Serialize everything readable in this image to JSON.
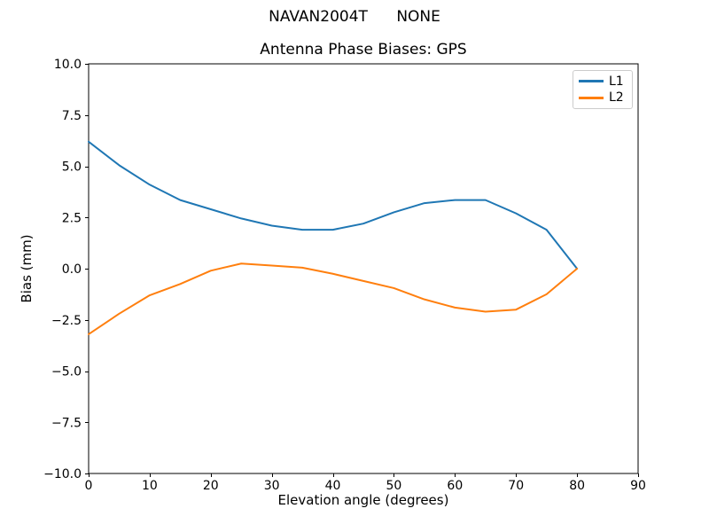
{
  "suptitle": "NAVAN2004T      NONE",
  "colors": {
    "l1": "#1f77b4",
    "l2": "#ff7f0e",
    "axis": "#000000",
    "background": "#ffffff",
    "legend_border": "#cccccc"
  },
  "chart_data": {
    "type": "line",
    "title": "Antenna Phase Biases: GPS",
    "xlabel": "Elevation angle (degrees)",
    "ylabel": "Bias (mm)",
    "xlim": [
      0,
      90
    ],
    "ylim": [
      -10,
      10
    ],
    "grid": false,
    "legend_position": "upper right",
    "x_ticks": [
      0,
      10,
      20,
      30,
      40,
      50,
      60,
      70,
      80,
      90
    ],
    "y_ticks": [
      -10.0,
      -7.5,
      -5.0,
      -2.5,
      0.0,
      2.5,
      5.0,
      7.5,
      10.0
    ],
    "y_tick_labels": [
      "−10.0",
      "−7.5",
      "−5.0",
      "−2.5",
      "0.0",
      "2.5",
      "5.0",
      "7.5",
      "10.0"
    ],
    "x": [
      0,
      5,
      10,
      15,
      20,
      25,
      30,
      35,
      40,
      45,
      50,
      55,
      60,
      65,
      70,
      75,
      80
    ],
    "series": [
      {
        "name": "L1",
        "color": "#1f77b4",
        "values": [
          6.2,
          5.05,
          4.1,
          3.35,
          2.9,
          2.45,
          2.1,
          1.9,
          1.9,
          2.2,
          2.75,
          3.2,
          3.35,
          3.35,
          2.7,
          1.9,
          0.0
        ]
      },
      {
        "name": "L2",
        "color": "#ff7f0e",
        "values": [
          -3.2,
          -2.2,
          -1.3,
          -0.75,
          -0.1,
          0.25,
          0.15,
          0.05,
          -0.25,
          -0.6,
          -0.95,
          -1.5,
          -1.9,
          -2.1,
          -2.0,
          -1.25,
          0.0
        ]
      }
    ]
  }
}
